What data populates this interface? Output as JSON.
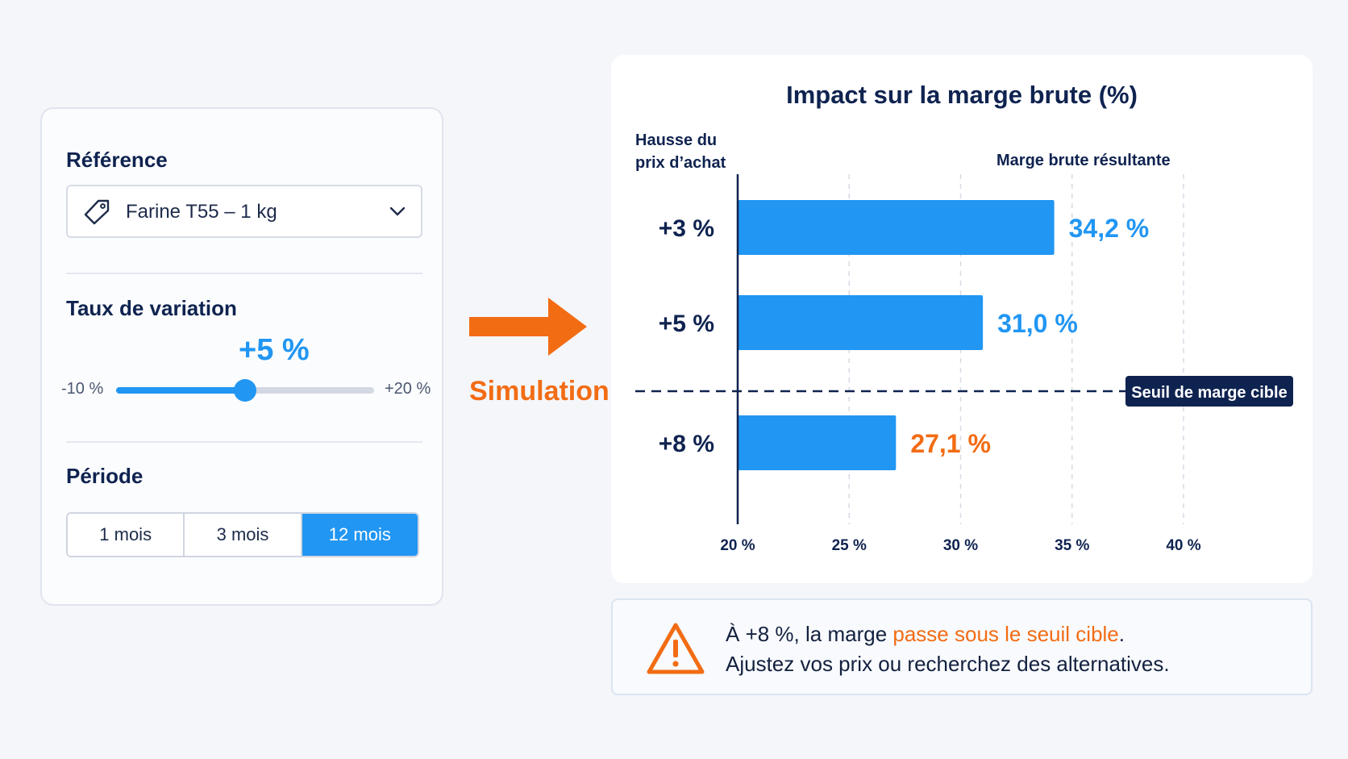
{
  "panel": {
    "reference_title": "Référence",
    "reference_value": "Farine T55 – 1 kg",
    "variation_title": "Taux de variation",
    "slider": {
      "value_label": "+5 %",
      "min_label": "-10 %",
      "max_label": "+20 %",
      "value": 5,
      "min": -10,
      "max": 20
    },
    "period_title": "Période",
    "periods": [
      "1 mois",
      "3 mois",
      "12 mois"
    ],
    "active_period": "12 mois"
  },
  "simulation_label": "Simulation",
  "colors": {
    "accent": "#2196f3",
    "warning": "#f26c14",
    "dark": "#0f2350"
  },
  "chart_data": {
    "type": "bar",
    "orientation": "horizontal",
    "title": "Impact sur la marge brute (%)",
    "ylabel": "Hausse du prix d’achat",
    "xlabel": "Marge brute résultante",
    "categories": [
      "+3 %",
      "+5 %",
      "+8 %"
    ],
    "values": [
      34.2,
      31.0,
      27.1
    ],
    "value_labels": [
      "34,2 %",
      "31,0 %",
      "27,1 %"
    ],
    "value_label_colors": [
      "#2196f3",
      "#2196f3",
      "#f26c14"
    ],
    "xlim": [
      20,
      40
    ],
    "xticks": [
      20,
      25,
      30,
      35,
      40
    ],
    "xtick_labels": [
      "20 %",
      "25 %",
      "30 %",
      "35 %",
      "40 %"
    ],
    "grid": "vertical dashed",
    "threshold": {
      "label": "Seuil de marge cible",
      "position_between": [
        "+5 %",
        "+8 %"
      ]
    }
  },
  "alert": {
    "line1_prefix": "À +8 %, la marge ",
    "line1_highlight": "passe sous le seuil cible",
    "line1_suffix": ".",
    "line2": "Ajustez vos prix ou recherchez des alternatives.",
    "icon": "warning-icon"
  }
}
